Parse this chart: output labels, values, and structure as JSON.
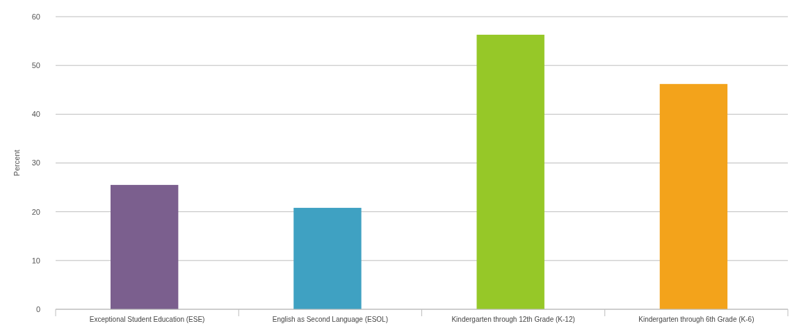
{
  "chart_data": {
    "type": "bar",
    "ylabel": "Percent",
    "categories": [
      "Exceptional Student Education (ESE)",
      "English as Second Language (ESOL)",
      "Kindergarten through 12th Grade (K-12)",
      "Kindergarten through 6th Grade (K-6)"
    ],
    "values": [
      25.5,
      20.8,
      56.3,
      46.2
    ],
    "colors": [
      "#7b5f8e",
      "#3fa1c2",
      "#96c828",
      "#f3a31b"
    ],
    "ylim": [
      0,
      60
    ],
    "yticks": [
      0,
      10,
      20,
      30,
      40,
      50,
      60
    ],
    "grid": "y"
  }
}
